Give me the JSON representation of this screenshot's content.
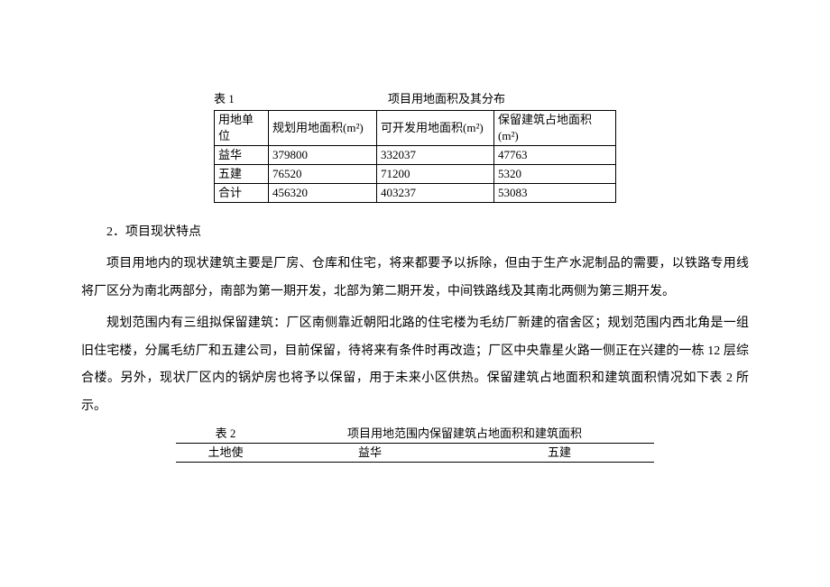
{
  "table1": {
    "label": "表 1",
    "caption": "项目用地面积及其分布",
    "columns": [
      "用地单位",
      "规划用地面积(m²)",
      "可开发用地面积(m²)",
      "保留建筑占地面积(m²)"
    ],
    "rows": [
      [
        "益华",
        "379800",
        "332037",
        "47763"
      ],
      [
        "五建",
        "76520",
        "71200",
        "5320"
      ],
      [
        "合计",
        "456320",
        "403237",
        "53083"
      ]
    ]
  },
  "section": {
    "heading": "2．项目现状特点",
    "para1": "项目用地内的现状建筑主要是厂房、仓库和住宅，将来都要予以拆除，但由于生产水泥制品的需要，以铁路专用线将厂区分为南北两部分，南部为第一期开发，北部为第二期开发，中间铁路线及其南北两侧为第三期开发。",
    "para2": "规划范围内有三组拟保留建筑：厂区南侧靠近朝阳北路的住宅楼为毛纺厂新建的宿舍区；规划范围内西北角是一组旧住宅楼，分属毛纺厂和五建公司，目前保留，待将来有条件时再改造；厂区中央靠星火路一侧正在兴建的一栋 12 层综合楼。另外，现状厂区内的锅炉房也将予以保留，用于未来小区供热。保留建筑占地面积和建筑面积情况如下表 2 所示。"
  },
  "table2": {
    "label": "表 2",
    "caption": "项目用地范围内保留建筑占地面积和建筑面积",
    "columns": [
      "土地使",
      "益华",
      "五建"
    ]
  }
}
